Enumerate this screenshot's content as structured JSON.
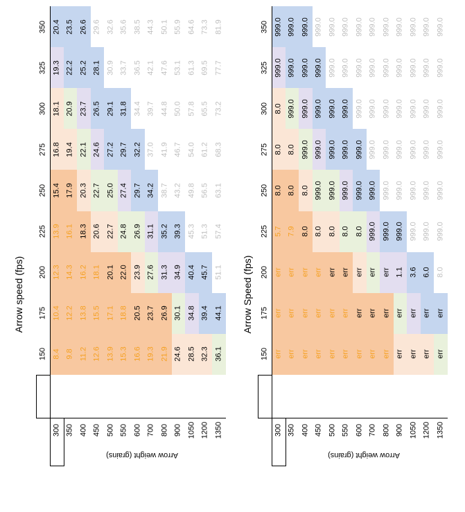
{
  "chart_data": [
    {
      "type": "table",
      "title": "",
      "xlabel": "Arrow speed (fps)",
      "ylabel": "Arrow weight (grains)",
      "columns": [
        "150",
        "175",
        "200",
        "225",
        "250",
        "275",
        "300",
        "325",
        "350"
      ],
      "rows": [
        "300",
        "350",
        "400",
        "450",
        "500",
        "550",
        "600",
        "700",
        "800",
        "900",
        "1050",
        "1200",
        "1350"
      ],
      "cells": [
        [
          "8.4",
          "10.4",
          "12.3",
          "13.9",
          "15.4",
          "16.8",
          "18.1",
          "19.3",
          "20.4"
        ],
        [
          "9.8",
          "12.2",
          "14.3",
          "16.1",
          "17.9",
          "19.4",
          "20.9",
          "22.2",
          "23.5"
        ],
        [
          "11.2",
          "13.8",
          "16.2",
          "18.3",
          "20.3",
          "22.1",
          "23.7",
          "25.2",
          "26.6"
        ],
        [
          "12.6",
          "15.5",
          "18.1",
          "20.6",
          "22.7",
          "24.6",
          "26.5",
          "28.1",
          "29.6"
        ],
        [
          "13.9",
          "17.1",
          "20.1",
          "22.7",
          "25.0",
          "27.2",
          "29.1",
          "30.9",
          "32.6"
        ],
        [
          "15.3",
          "18.8",
          "22.0",
          "24.8",
          "27.4",
          "29.7",
          "31.8",
          "33.7",
          "35.6"
        ],
        [
          "16.6",
          "20.5",
          "23.9",
          "26.9",
          "29.7",
          "32.2",
          "34.4",
          "36.5",
          "38.5"
        ],
        [
          "19.3",
          "23.7",
          "27.6",
          "31.1",
          "34.2",
          "37.0",
          "39.7",
          "42.1",
          "44.3"
        ],
        [
          "21.9",
          "26.9",
          "31.3",
          "35.2",
          "38.7",
          "41.9",
          "44.8",
          "47.6",
          "50.1"
        ],
        [
          "24.6",
          "30.1",
          "34.9",
          "39.3",
          "43.2",
          "46.7",
          "50.0",
          "53.1",
          "55.9"
        ],
        [
          "28.5",
          "34.8",
          "40.4",
          "45.3",
          "49.8",
          "54.0",
          "57.8",
          "61.3",
          "64.6"
        ],
        [
          "32.3",
          "39.4",
          "45.7",
          "51.3",
          "56.5",
          "61.2",
          "65.5",
          "69.5",
          "73.3"
        ],
        [
          "36.1",
          "44.1",
          "51.1",
          "57.4",
          "63.1",
          "68.3",
          "73.2",
          "77.7",
          "81.9"
        ]
      ]
    },
    {
      "type": "table",
      "title": "",
      "xlabel": "Arrow Speed (fps)",
      "ylabel": "Arrow weight (grains)",
      "columns": [
        "150",
        "175",
        "200",
        "225",
        "250",
        "275",
        "300",
        "325",
        "350"
      ],
      "rows": [
        "300",
        "350",
        "400",
        "450",
        "500",
        "550",
        "600",
        "700",
        "800",
        "900",
        "1050",
        "1200",
        "1350"
      ],
      "cells": [
        [
          "err",
          "err",
          "err",
          "5.7",
          "8.0",
          "8.0",
          "8.0",
          "999.0",
          "999.0"
        ],
        [
          "err",
          "err",
          "err",
          "7.9",
          "8.0",
          "8.0",
          "999.0",
          "999.0",
          "999.0"
        ],
        [
          "err",
          "err",
          "err",
          "8.0",
          "8.0",
          "999.0",
          "999.0",
          "999.0",
          "999.0"
        ],
        [
          "err",
          "err",
          "err",
          "8.0",
          "999.0",
          "999.0",
          "999.0",
          "999.0",
          "999.0"
        ],
        [
          "err",
          "err",
          "err",
          "8.0",
          "999.0",
          "999.0",
          "999.0",
          "999.0",
          "999.0"
        ],
        [
          "err",
          "err",
          "err",
          "8.0",
          "999.0",
          "999.0",
          "999.0",
          "999.0",
          "999.0"
        ],
        [
          "err",
          "err",
          "err",
          "8.0",
          "999.0",
          "999.0",
          "999.0",
          "999.0",
          "999.0"
        ],
        [
          "err",
          "err",
          "err",
          "999.0",
          "999.0",
          "999.0",
          "999.0",
          "999.0",
          "999.0"
        ],
        [
          "err",
          "err",
          "err",
          "999.0",
          "999.0",
          "999.0",
          "999.0",
          "999.0",
          "999.0"
        ],
        [
          "err",
          "err",
          "1.1",
          "999.0",
          "999.0",
          "999.0",
          "999.0",
          "999.0",
          "999.0"
        ],
        [
          "err",
          "err",
          "3.6",
          "999.0",
          "999.0",
          "999.0",
          "999.0",
          "999.0",
          "999.0"
        ],
        [
          "err",
          "err",
          "6.0",
          "999.0",
          "999.0",
          "999.0",
          "999.0",
          "999.0",
          "999.0"
        ],
        [
          "err",
          "err",
          "8.0",
          "999.0",
          "999.0",
          "999.0",
          "999.0",
          "999.0",
          "999.0"
        ]
      ]
    }
  ],
  "colors": {
    "orange": "#f8c8a0",
    "peach": "#fbe6d6",
    "green": "#e9f1dc",
    "purple": "#e3def0",
    "blue": "#c5d6ef",
    "white": "#ffffff",
    "text_orange": "#f5a020",
    "text_black": "#000000",
    "text_gray": "#bfbfbf"
  },
  "fills": [
    [
      [
        "O",
        "O",
        "O",
        "O",
        "O",
        "P",
        "P",
        "L",
        "B"
      ],
      [
        "O",
        "O",
        "O",
        "O",
        "O",
        "P",
        "G",
        "B",
        "B"
      ],
      [
        "O",
        "O",
        "O",
        "O",
        "P",
        "G",
        "L",
        "B",
        "B"
      ],
      [
        "O",
        "O",
        "O",
        "P",
        "G",
        "L",
        "B",
        "B",
        "W"
      ],
      [
        "O",
        "O",
        "O",
        "P",
        "G",
        "B",
        "B",
        "W",
        "W"
      ],
      [
        "O",
        "O",
        "O",
        "G",
        "L",
        "B",
        "B",
        "W",
        "W"
      ],
      [
        "O",
        "O",
        "P",
        "G",
        "B",
        "B",
        "W",
        "W",
        "W"
      ],
      [
        "O",
        "O",
        "G",
        "L",
        "B",
        "W",
        "W",
        "W",
        "W"
      ],
      [
        "O",
        "O",
        "L",
        "B",
        "W",
        "W",
        "W",
        "W",
        "W"
      ],
      [
        "P",
        "G",
        "L",
        "B",
        "W",
        "W",
        "W",
        "W",
        "W"
      ],
      [
        "P",
        "L",
        "B",
        "W",
        "W",
        "W",
        "W",
        "W",
        "W"
      ],
      [
        "P",
        "B",
        "B",
        "W",
        "W",
        "W",
        "W",
        "W",
        "W"
      ],
      [
        "G",
        "B",
        "W",
        "W",
        "W",
        "W",
        "W",
        "W",
        "W"
      ]
    ],
    [
      [
        "O",
        "O",
        "O",
        "O",
        "O",
        "P",
        "P",
        "L",
        "B"
      ],
      [
        "O",
        "O",
        "O",
        "O",
        "O",
        "P",
        "G",
        "B",
        "B"
      ],
      [
        "O",
        "O",
        "O",
        "O",
        "P",
        "G",
        "L",
        "B",
        "B"
      ],
      [
        "O",
        "O",
        "O",
        "P",
        "G",
        "L",
        "B",
        "B",
        "W"
      ],
      [
        "O",
        "O",
        "O",
        "P",
        "G",
        "B",
        "B",
        "W",
        "W"
      ],
      [
        "O",
        "O",
        "O",
        "G",
        "L",
        "B",
        "B",
        "W",
        "W"
      ],
      [
        "O",
        "O",
        "P",
        "G",
        "B",
        "B",
        "W",
        "W",
        "W"
      ],
      [
        "O",
        "O",
        "G",
        "L",
        "B",
        "W",
        "W",
        "W",
        "W"
      ],
      [
        "O",
        "O",
        "L",
        "B",
        "W",
        "W",
        "W",
        "W",
        "W"
      ],
      [
        "P",
        "G",
        "L",
        "B",
        "W",
        "W",
        "W",
        "W",
        "W"
      ],
      [
        "P",
        "L",
        "B",
        "W",
        "W",
        "W",
        "W",
        "W",
        "W"
      ],
      [
        "P",
        "B",
        "B",
        "W",
        "W",
        "W",
        "W",
        "W",
        "W"
      ],
      [
        "G",
        "B",
        "W",
        "W",
        "W",
        "W",
        "W",
        "W",
        "W"
      ]
    ]
  ],
  "text_tones": [
    [
      [
        "o",
        "o",
        "o",
        "o",
        "k",
        "k",
        "k",
        "k",
        "k"
      ],
      [
        "o",
        "o",
        "o",
        "o",
        "k",
        "k",
        "k",
        "k",
        "k"
      ],
      [
        "o",
        "o",
        "o",
        "k",
        "k",
        "k",
        "k",
        "k",
        "k"
      ],
      [
        "o",
        "o",
        "o",
        "k",
        "k",
        "k",
        "k",
        "k",
        "g"
      ],
      [
        "o",
        "o",
        "k",
        "k",
        "k",
        "k",
        "k",
        "g",
        "g"
      ],
      [
        "o",
        "o",
        "k",
        "k",
        "k",
        "k",
        "k",
        "g",
        "g"
      ],
      [
        "o",
        "k",
        "k",
        "k",
        "k",
        "k",
        "g",
        "g",
        "g"
      ],
      [
        "o",
        "k",
        "k",
        "k",
        "k",
        "g",
        "g",
        "g",
        "g"
      ],
      [
        "o",
        "k",
        "k",
        "k",
        "g",
        "g",
        "g",
        "g",
        "g"
      ],
      [
        "k",
        "k",
        "k",
        "k",
        "g",
        "g",
        "g",
        "g",
        "g"
      ],
      [
        "k",
        "k",
        "k",
        "g",
        "g",
        "g",
        "g",
        "g",
        "g"
      ],
      [
        "k",
        "k",
        "k",
        "g",
        "g",
        "g",
        "g",
        "g",
        "g"
      ],
      [
        "k",
        "k",
        "g",
        "g",
        "g",
        "g",
        "g",
        "g",
        "g"
      ]
    ],
    [
      [
        "o",
        "o",
        "o",
        "o",
        "k",
        "k",
        "k",
        "k",
        "k"
      ],
      [
        "o",
        "o",
        "o",
        "o",
        "k",
        "k",
        "k",
        "k",
        "k"
      ],
      [
        "o",
        "o",
        "o",
        "k",
        "k",
        "k",
        "k",
        "k",
        "k"
      ],
      [
        "o",
        "o",
        "o",
        "k",
        "k",
        "k",
        "k",
        "k",
        "g"
      ],
      [
        "o",
        "o",
        "k",
        "k",
        "k",
        "k",
        "k",
        "g",
        "g"
      ],
      [
        "o",
        "o",
        "k",
        "k",
        "k",
        "k",
        "k",
        "g",
        "g"
      ],
      [
        "o",
        "k",
        "k",
        "k",
        "k",
        "k",
        "g",
        "g",
        "g"
      ],
      [
        "o",
        "k",
        "k",
        "k",
        "k",
        "g",
        "g",
        "g",
        "g"
      ],
      [
        "o",
        "k",
        "k",
        "k",
        "g",
        "g",
        "g",
        "g",
        "g"
      ],
      [
        "k",
        "k",
        "k",
        "k",
        "g",
        "g",
        "g",
        "g",
        "g"
      ],
      [
        "k",
        "k",
        "k",
        "g",
        "g",
        "g",
        "g",
        "g",
        "g"
      ],
      [
        "k",
        "k",
        "k",
        "g",
        "g",
        "g",
        "g",
        "g",
        "g"
      ],
      [
        "k",
        "k",
        "g",
        "g",
        "g",
        "g",
        "g",
        "g",
        "g"
      ]
    ]
  ]
}
